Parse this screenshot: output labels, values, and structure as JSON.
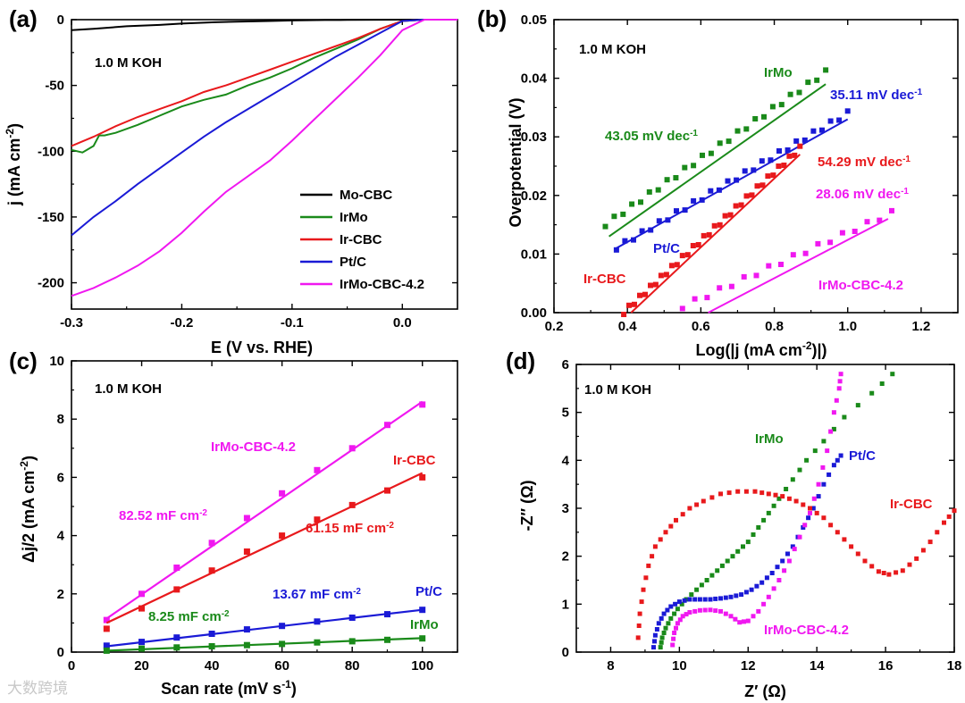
{
  "chart_data": [
    {
      "panel": "(a)",
      "type": "line",
      "annotation": "1.0 M KOH",
      "xlabel": "E (V vs. RHE)",
      "ylabel": "j (mA cm-2)",
      "xlim": [
        -0.3,
        0.05
      ],
      "ylim": [
        -220,
        0
      ],
      "xticks": [
        "-0.3",
        "-0.2",
        "-0.1",
        "0.0"
      ],
      "yticks": [
        "0",
        "-50",
        "-100",
        "-150",
        "-200"
      ],
      "legend": "bottom-right",
      "series": [
        {
          "name": "Mo-CBC",
          "color": "#000000",
          "x": [
            -0.3,
            -0.28,
            -0.25,
            -0.22,
            -0.2,
            -0.17,
            -0.15,
            -0.12,
            -0.1,
            -0.07,
            -0.05,
            -0.02,
            0.0,
            0.02,
            0.05
          ],
          "y": [
            -8,
            -7,
            -5,
            -4,
            -3,
            -2,
            -1.5,
            -1,
            -0.6,
            -0.3,
            -0.2,
            -0.1,
            0,
            0,
            0
          ]
        },
        {
          "name": "IrMo",
          "color": "#1a8a1a",
          "x": [
            -0.3,
            -0.29,
            -0.28,
            -0.275,
            -0.27,
            -0.26,
            -0.24,
            -0.22,
            -0.2,
            -0.18,
            -0.16,
            -0.14,
            -0.12,
            -0.1,
            -0.08,
            -0.06,
            -0.04,
            -0.02,
            0.0,
            0.02,
            0.05
          ],
          "y": [
            -99,
            -101,
            -96,
            -88,
            -88,
            -86,
            -80,
            -73,
            -66,
            -61,
            -57,
            -50,
            -44,
            -37,
            -29,
            -22,
            -15,
            -7,
            -1,
            0,
            0
          ]
        },
        {
          "name": "Ir-CBC",
          "color": "#e8191c",
          "x": [
            -0.3,
            -0.28,
            -0.26,
            -0.24,
            -0.22,
            -0.2,
            -0.18,
            -0.16,
            -0.14,
            -0.12,
            -0.1,
            -0.08,
            -0.06,
            -0.04,
            -0.02,
            0.0,
            0.02,
            0.05
          ],
          "y": [
            -96,
            -89,
            -81,
            -74,
            -68,
            -62,
            -55,
            -50,
            -44,
            -38,
            -32,
            -26,
            -20,
            -14,
            -7,
            -1,
            0,
            0
          ]
        },
        {
          "name": "Pt/C",
          "color": "#1a1ad6",
          "x": [
            -0.3,
            -0.28,
            -0.26,
            -0.24,
            -0.22,
            -0.2,
            -0.18,
            -0.16,
            -0.14,
            -0.12,
            -0.1,
            -0.08,
            -0.06,
            -0.04,
            -0.02,
            0.0,
            0.02,
            0.05
          ],
          "y": [
            -164,
            -150,
            -138,
            -125,
            -113,
            -101,
            -89,
            -78,
            -68,
            -58,
            -48,
            -38,
            -28,
            -19,
            -10,
            -1,
            0,
            0
          ]
        },
        {
          "name": "IrMo-CBC-4.2",
          "color": "#f018f0",
          "x": [
            -0.3,
            -0.28,
            -0.26,
            -0.24,
            -0.22,
            -0.2,
            -0.18,
            -0.16,
            -0.14,
            -0.12,
            -0.1,
            -0.08,
            -0.06,
            -0.04,
            -0.02,
            0.0,
            0.02,
            0.05
          ],
          "y": [
            -210,
            -204,
            -196,
            -187,
            -176,
            -162,
            -146,
            -131,
            -119,
            -107,
            -92,
            -76,
            -60,
            -44,
            -27,
            -8,
            0,
            0
          ]
        }
      ]
    },
    {
      "panel": "(b)",
      "type": "scatter",
      "annotation": "1.0 M KOH",
      "xlabel": "Log(|j (mA cm-2)|)",
      "ylabel": "Overpotential (V)",
      "xlim": [
        0.2,
        1.3
      ],
      "ylim": [
        0,
        0.05
      ],
      "xticks": [
        "0.2",
        "0.4",
        "0.6",
        "0.8",
        "1.0",
        "1.2"
      ],
      "yticks": [
        "0.00",
        "0.01",
        "0.02",
        "0.03",
        "0.04",
        "0.05"
      ],
      "series": [
        {
          "name": "IrMo",
          "color": "#1a8a1a",
          "slope_label": "43.05 mV dec-1",
          "x_start": 0.34,
          "x_end": 0.94,
          "y_start": 0.015,
          "y_end": 0.041,
          "fit_x": [
            0.35,
            0.94
          ],
          "fit_y": [
            0.013,
            0.039
          ],
          "n": 26
        },
        {
          "name": "Pt/C",
          "color": "#1a1ad6",
          "slope_label": "35.11 mV dec-1",
          "x_start": 0.37,
          "x_end": 1.0,
          "y_start": 0.011,
          "y_end": 0.034,
          "fit_x": [
            0.37,
            1.0
          ],
          "fit_y": [
            0.011,
            0.033
          ],
          "n": 28
        },
        {
          "name": "Ir-CBC",
          "color": "#e8191c",
          "slope_label": "54.29 mV dec-1",
          "x_start": 0.39,
          "x_end": 0.87,
          "y_start": 0.0,
          "y_end": 0.028,
          "fit_x": [
            0.41,
            0.87
          ],
          "fit_y": [
            0.0,
            0.027
          ],
          "n": 34
        },
        {
          "name": "IrMo-CBC-4.2",
          "color": "#f018f0",
          "slope_label": "28.06 mV dec-1",
          "x_start": 0.55,
          "x_end": 1.12,
          "y_start": 0.001,
          "y_end": 0.017,
          "fit_x": [
            0.62,
            1.11
          ],
          "fit_y": [
            0.0,
            0.016
          ],
          "n": 18
        }
      ]
    },
    {
      "panel": "(c)",
      "type": "scatter",
      "annotation": "1.0 M KOH",
      "xlabel": "Scan rate (mV s-1)",
      "ylabel": "Δj/2 (mA cm-2)",
      "xlim": [
        0,
        110
      ],
      "ylim": [
        0,
        10
      ],
      "xticks": [
        "0",
        "20",
        "40",
        "60",
        "80",
        "100"
      ],
      "yticks": [
        "0",
        "2",
        "4",
        "6",
        "8",
        "10"
      ],
      "x": [
        10,
        20,
        30,
        40,
        50,
        60,
        70,
        80,
        90,
        100
      ],
      "series": [
        {
          "name": "IrMo-CBC-4.2",
          "color": "#f018f0",
          "slope_label": "82.52 mF cm-2",
          "values": [
            1.1,
            2.0,
            2.9,
            3.75,
            4.6,
            5.45,
            6.25,
            7.0,
            7.8,
            8.5
          ],
          "fit": [
            1.15,
            8.6
          ]
        },
        {
          "name": "Ir-CBC",
          "color": "#e8191c",
          "slope_label": "61.15 mF cm-2",
          "values": [
            0.8,
            1.5,
            2.15,
            2.8,
            3.45,
            4.0,
            4.55,
            5.05,
            5.55,
            6.0
          ],
          "fit": [
            1.0,
            6.15
          ]
        },
        {
          "name": "Pt/C",
          "color": "#1a1ad6",
          "slope_label": "13.67 mF cm-2",
          "values": [
            0.22,
            0.35,
            0.5,
            0.63,
            0.78,
            0.9,
            1.05,
            1.18,
            1.3,
            1.45
          ],
          "fit": [
            0.2,
            1.45
          ]
        },
        {
          "name": "IrMo",
          "color": "#1a8a1a",
          "slope_label": "8.25 mF cm-2",
          "values": [
            0.05,
            0.12,
            0.16,
            0.2,
            0.24,
            0.28,
            0.33,
            0.37,
            0.42,
            0.47
          ],
          "fit": [
            0.05,
            0.48
          ]
        }
      ]
    },
    {
      "panel": "(d)",
      "type": "scatter",
      "annotation": "1.0 M KOH",
      "xlabel": "Z′ (Ω)",
      "ylabel": "-Z″ (Ω)",
      "xlim": [
        7,
        18
      ],
      "ylim": [
        0,
        6
      ],
      "xticks": [
        "8",
        "10",
        "12",
        "14",
        "16",
        "18"
      ],
      "yticks": [
        "0",
        "1",
        "2",
        "3",
        "4",
        "5",
        "6"
      ],
      "series": [
        {
          "name": "IrMo",
          "color": "#1a8a1a",
          "x": [
            9.45,
            9.5,
            9.6,
            9.75,
            9.95,
            10.2,
            10.5,
            10.8,
            11.1,
            11.4,
            11.7,
            12.0,
            12.3,
            12.6,
            12.9,
            13.3,
            13.7,
            14.2,
            14.8,
            15.6,
            16.2
          ],
          "y": [
            0.1,
            0.3,
            0.5,
            0.7,
            0.9,
            1.1,
            1.3,
            1.5,
            1.7,
            1.9,
            2.1,
            2.3,
            2.6,
            2.9,
            3.2,
            3.6,
            4.0,
            4.4,
            4.9,
            5.4,
            5.8
          ]
        },
        {
          "name": "Pt/C",
          "color": "#1a1ad6",
          "x": [
            9.25,
            9.3,
            9.4,
            9.55,
            9.75,
            10.0,
            10.3,
            10.6,
            10.9,
            11.2,
            11.5,
            11.8,
            12.1,
            12.4,
            12.7,
            13.0,
            13.3,
            13.6,
            13.9,
            14.2,
            14.5,
            14.7
          ],
          "y": [
            0.1,
            0.35,
            0.6,
            0.8,
            0.95,
            1.05,
            1.1,
            1.1,
            1.1,
            1.12,
            1.15,
            1.2,
            1.3,
            1.45,
            1.65,
            1.9,
            2.2,
            2.6,
            3.0,
            3.5,
            3.9,
            4.1
          ]
        },
        {
          "name": "Ir-CBC",
          "color": "#e8191c",
          "x": [
            8.8,
            8.85,
            8.95,
            9.1,
            9.3,
            9.6,
            9.9,
            10.3,
            10.7,
            11.2,
            11.7,
            12.2,
            12.6,
            13.0,
            13.4,
            13.8,
            14.2,
            14.6,
            15.0,
            15.4,
            15.8,
            16.1,
            16.5,
            16.9,
            17.3,
            17.7,
            18.0
          ],
          "y": [
            0.3,
            0.8,
            1.3,
            1.8,
            2.2,
            2.5,
            2.75,
            3.0,
            3.15,
            3.3,
            3.35,
            3.35,
            3.3,
            3.25,
            3.15,
            3.0,
            2.8,
            2.5,
            2.2,
            1.9,
            1.68,
            1.62,
            1.7,
            1.95,
            2.3,
            2.7,
            2.95
          ]
        },
        {
          "name": "IrMo-CBC-4.2",
          "color": "#f018f0",
          "x": [
            9.8,
            9.85,
            9.95,
            10.1,
            10.3,
            10.6,
            10.9,
            11.2,
            11.5,
            11.75,
            12.0,
            12.3,
            12.6,
            12.9,
            13.2,
            13.5,
            13.8,
            14.05,
            14.3,
            14.5,
            14.65,
            14.7
          ],
          "y": [
            0.15,
            0.4,
            0.6,
            0.75,
            0.83,
            0.87,
            0.88,
            0.85,
            0.75,
            0.62,
            0.65,
            0.85,
            1.15,
            1.5,
            1.9,
            2.4,
            2.9,
            3.5,
            4.2,
            5.0,
            5.5,
            5.8
          ]
        }
      ]
    }
  ],
  "panels": {
    "a": {
      "tag": "(a)",
      "note": "1.0 M KOH",
      "xlabel": "E (V vs. RHE)",
      "ylabel_main": "j (mA cm",
      "ylabel_sup": "-2",
      "ylabel_end": ")"
    },
    "b": {
      "tag": "(b)",
      "note": "1.0 M KOH",
      "xlabel_a": "Log(|j (mA cm",
      "xlabel_sup": "-2",
      "xlabel_b": ")|)",
      "ylabel": "Overpotential (V)"
    },
    "c": {
      "tag": "(c)",
      "note": "1.0 M KOH",
      "xlabel_a": "Scan rate (mV s",
      "xlabel_sup": "-1",
      "xlabel_b": ")",
      "ylabel_a": "Δj/2 (mA cm",
      "ylabel_sup": "-2",
      "ylabel_b": ")"
    },
    "d": {
      "tag": "(d)",
      "note": "1.0 M KOH",
      "xlabel": "Z′ (Ω)",
      "ylabel": "-Z″ (Ω)"
    }
  },
  "labels": {
    "b": [
      {
        "text": "IrMo",
        "color": "#1a8a1a"
      },
      {
        "text": "43.05 mV dec",
        "sup": "-1",
        "color": "#1a8a1a"
      },
      {
        "text": "35.11 mV dec",
        "sup": "-1",
        "color": "#1a1ad6"
      },
      {
        "text": "Pt/C",
        "color": "#1a1ad6"
      },
      {
        "text": "54.29 mV dec",
        "sup": "-1",
        "color": "#e8191c"
      },
      {
        "text": "28.06 mV dec",
        "sup": "-1",
        "color": "#f018f0"
      },
      {
        "text": "Ir-CBC",
        "color": "#e8191c"
      },
      {
        "text": "IrMo-CBC-4.2",
        "color": "#f018f0"
      }
    ],
    "c": [
      {
        "text": "IrMo-CBC-4.2",
        "color": "#f018f0"
      },
      {
        "text": "Ir-CBC",
        "color": "#e8191c"
      },
      {
        "text": "82.52 mF cm",
        "sup": "-2",
        "color": "#f018f0"
      },
      {
        "text": "61.15 mF cm",
        "sup": "-2",
        "color": "#e8191c"
      },
      {
        "text": "13.67 mF cm",
        "sup": "-2",
        "color": "#1a1ad6"
      },
      {
        "text": "Pt/C",
        "color": "#1a1ad6"
      },
      {
        "text": "8.25 mF cm",
        "sup": "-2",
        "color": "#1a8a1a"
      },
      {
        "text": "IrMo",
        "color": "#1a8a1a"
      }
    ],
    "d": [
      {
        "text": "IrMo",
        "color": "#1a8a1a"
      },
      {
        "text": "Pt/C",
        "color": "#1a1ad6"
      },
      {
        "text": "Ir-CBC",
        "color": "#e8191c"
      },
      {
        "text": "IrMo-CBC-4.2",
        "color": "#f018f0"
      }
    ]
  },
  "watermark": "大数跨境"
}
